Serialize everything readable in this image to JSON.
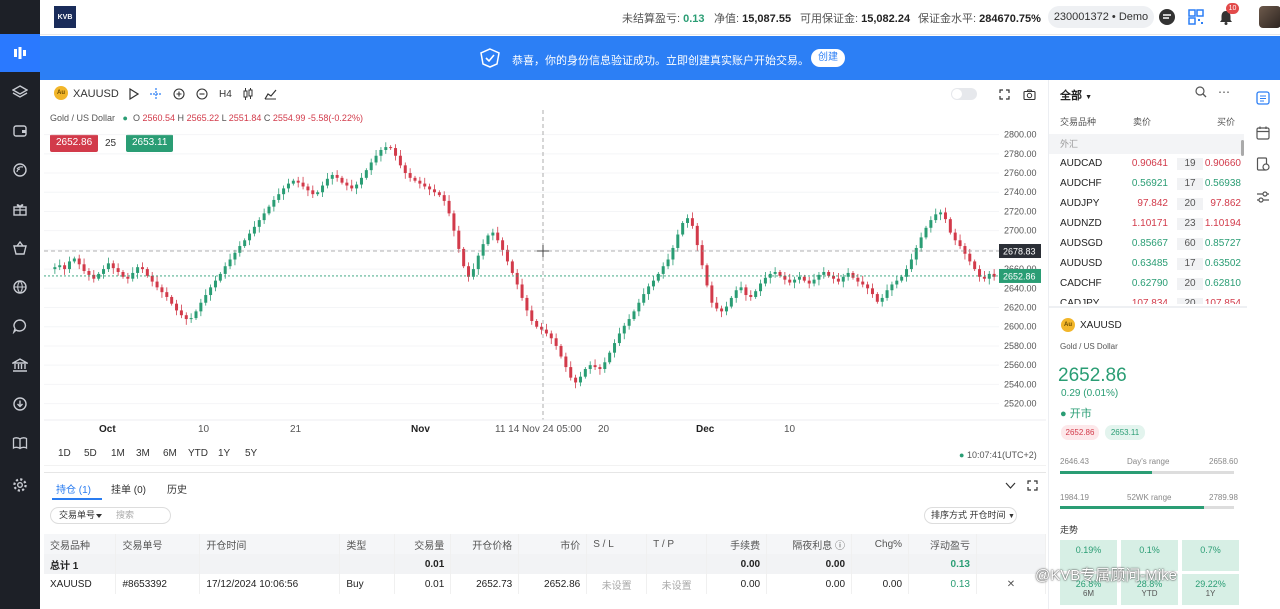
{
  "topbar": {
    "logo": "KVB",
    "unrealized_label": "未结算盈亏:",
    "unrealized_value": "0.13",
    "equity_label": "净值:",
    "equity_value": "15,087.55",
    "free_margin_label": "可用保证金:",
    "free_margin_value": "15,082.24",
    "margin_level_label": "保证金水平:",
    "margin_level_value": "284670.75%",
    "account": "230001372 • Demo",
    "notification_count": "10"
  },
  "banner": {
    "text": "恭喜，你的身份信息验证成功。立即创建真实账户开始交易。",
    "button": "创建"
  },
  "chart": {
    "symbol": "XAUUSD",
    "subtitle": "Gold / US Dollar",
    "timeframe": "H4",
    "ohlc": {
      "o": "2560.54",
      "h": "2565.22",
      "l": "2551.84",
      "c": "2554.99",
      "chg": "-5.58(-0.22%)"
    },
    "bid": "2652.86",
    "spread": "25",
    "ask": "2653.11",
    "price_ticks": [
      "2800.00",
      "2780.00",
      "2760.00",
      "2740.00",
      "2720.00",
      "2700.00",
      "2680.00",
      "2660.00",
      "2640.00",
      "2620.00",
      "2600.00",
      "2580.00",
      "2560.00",
      "2540.00",
      "2520.00"
    ],
    "crosshair_price": "2678.83",
    "current_price": "2652.86",
    "time_labels": [
      {
        "t": "Oct",
        "bold": true
      },
      {
        "t": "10"
      },
      {
        "t": "21"
      },
      {
        "t": "Nov",
        "bold": true
      },
      {
        "t": "11 14 Nov 24 05:00"
      },
      {
        "t": "20"
      },
      {
        "t": "Dec",
        "bold": true
      },
      {
        "t": "10"
      }
    ],
    "ranges": [
      "1D",
      "5D",
      "1M",
      "3M",
      "6M",
      "YTD",
      "1Y",
      "5Y"
    ],
    "clock": "10:07:41(UTC+2)"
  },
  "chart_data": {
    "type": "candlestick",
    "x_labels": [
      "Oct",
      "10",
      "21",
      "Nov",
      "20",
      "Dec",
      "10"
    ],
    "ylim": [
      2505,
      2810
    ],
    "close_series": [
      2660,
      2662,
      2664,
      2660,
      2668,
      2671,
      2665,
      2658,
      2654,
      2650,
      2655,
      2660,
      2666,
      2661,
      2657,
      2652,
      2650,
      2656,
      2662,
      2660,
      2653,
      2647,
      2641,
      2636,
      2631,
      2624,
      2617,
      2612,
      2608,
      2609,
      2616,
      2625,
      2633,
      2641,
      2648,
      2655,
      2663,
      2670,
      2677,
      2684,
      2690,
      2697,
      2704,
      2711,
      2718,
      2725,
      2732,
      2738,
      2744,
      2749,
      2752,
      2750,
      2746,
      2742,
      2738,
      2740,
      2747,
      2754,
      2758,
      2755,
      2750,
      2747,
      2744,
      2748,
      2755,
      2763,
      2771,
      2778,
      2784,
      2787,
      2786,
      2778,
      2768,
      2760,
      2755,
      2752,
      2749,
      2746,
      2743,
      2740,
      2737,
      2731,
      2718,
      2700,
      2681,
      2663,
      2652,
      2660,
      2674,
      2686,
      2695,
      2698,
      2690,
      2680,
      2668,
      2656,
      2644,
      2630,
      2617,
      2606,
      2600,
      2597,
      2593,
      2588,
      2580,
      2569,
      2558,
      2547,
      2542,
      2548,
      2556,
      2560,
      2558,
      2556,
      2563,
      2573,
      2583,
      2593,
      2601,
      2608,
      2616,
      2625,
      2634,
      2642,
      2648,
      2655,
      2663,
      2670,
      2682,
      2696,
      2708,
      2713,
      2705,
      2685,
      2664,
      2643,
      2625,
      2619,
      2616,
      2621,
      2630,
      2638,
      2641,
      2633,
      2631,
      2637,
      2645,
      2651,
      2655,
      2657,
      2653,
      2649,
      2646,
      2649,
      2652,
      2648,
      2645,
      2649,
      2654,
      2657,
      2653,
      2650,
      2647,
      2652,
      2656,
      2651,
      2647,
      2644,
      2640,
      2634,
      2626,
      2630,
      2638,
      2644,
      2648,
      2652,
      2660,
      2670,
      2682,
      2693,
      2703,
      2711,
      2717,
      2719,
      2712,
      2698,
      2690,
      2684,
      2676,
      2668,
      2660,
      2652,
      2650,
      2655,
      2652
    ]
  },
  "orders": {
    "tabs": [
      "持仓 (1)",
      "挂单 (0)",
      "历史"
    ],
    "filter_select": "交易单号",
    "filter_placeholder": "搜索",
    "sort_label": "排序方式 开仓时间",
    "columns": [
      "交易品种",
      "交易单号",
      "开仓时间",
      "类型",
      "交易量",
      "开仓价格",
      "市价",
      "S / L",
      "T / P",
      "手续费",
      "隔夜利息",
      "Chg%",
      "浮动盈亏"
    ],
    "total": {
      "label": "总计 1",
      "volume": "0.01",
      "fee": "0.00",
      "swap": "0.00",
      "pnl": "0.13"
    },
    "rows": [
      {
        "symbol": "XAUUSD",
        "ticket": "#8653392",
        "time": "17/12/2024 10:06:56",
        "type": "Buy",
        "volume": "0.01",
        "open": "2652.73",
        "market": "2652.86",
        "sl": "未设置",
        "tp": "未设置",
        "fee": "0.00",
        "swap": "0.00",
        "chg": "0.00",
        "pnl": "0.13"
      }
    ]
  },
  "watchlist": {
    "title": "全部",
    "col_symbol": "交易品种",
    "col_bid": "卖价",
    "col_ask": "买价",
    "group": "外汇",
    "rows": [
      {
        "s": "AUDCAD",
        "b": "0.90641",
        "sp": "19",
        "a": "0.90660",
        "up": false
      },
      {
        "s": "AUDCHF",
        "b": "0.56921",
        "sp": "17",
        "a": "0.56938",
        "up": true
      },
      {
        "s": "AUDJPY",
        "b": "97.842",
        "sp": "20",
        "a": "97.862",
        "up": false
      },
      {
        "s": "AUDNZD",
        "b": "1.10171",
        "sp": "23",
        "a": "1.10194",
        "up": false
      },
      {
        "s": "AUDSGD",
        "b": "0.85667",
        "sp": "60",
        "a": "0.85727",
        "up": true
      },
      {
        "s": "AUDUSD",
        "b": "0.63485",
        "sp": "17",
        "a": "0.63502",
        "up": true
      },
      {
        "s": "CADCHF",
        "b": "0.62790",
        "sp": "20",
        "a": "0.62810",
        "up": true
      },
      {
        "s": "CADJPY",
        "b": "107.834",
        "sp": "20",
        "a": "107.854",
        "up": false
      }
    ]
  },
  "detail": {
    "symbol": "XAUUSD",
    "name": "Gold / US Dollar",
    "price": "2652.86",
    "change": "0.29 (0.01%)",
    "status": "开市",
    "bid": "2652.86",
    "ask": "2653.11",
    "day_low": "2646.43",
    "day_label": "Day's range",
    "day_high": "2658.60",
    "wk_low": "1984.19",
    "wk_label": "52WK range",
    "wk_high": "2789.98",
    "trend_label": "走势",
    "trend": [
      {
        "p": "0.19%"
      },
      {
        "p": "0.1%"
      },
      {
        "p": "0.7%"
      },
      {
        "p": "26.8%",
        "l": "6M"
      },
      {
        "p": "28.8%",
        "l": "YTD"
      },
      {
        "p": "29.22%",
        "l": "1Y"
      }
    ]
  },
  "watermark": "@KVB专属顾问-Mike",
  "colors": {
    "accent": "#2c7ff5",
    "up": "#2a9d74",
    "down": "#d23a4a",
    "sidebar": "#1d2027"
  }
}
